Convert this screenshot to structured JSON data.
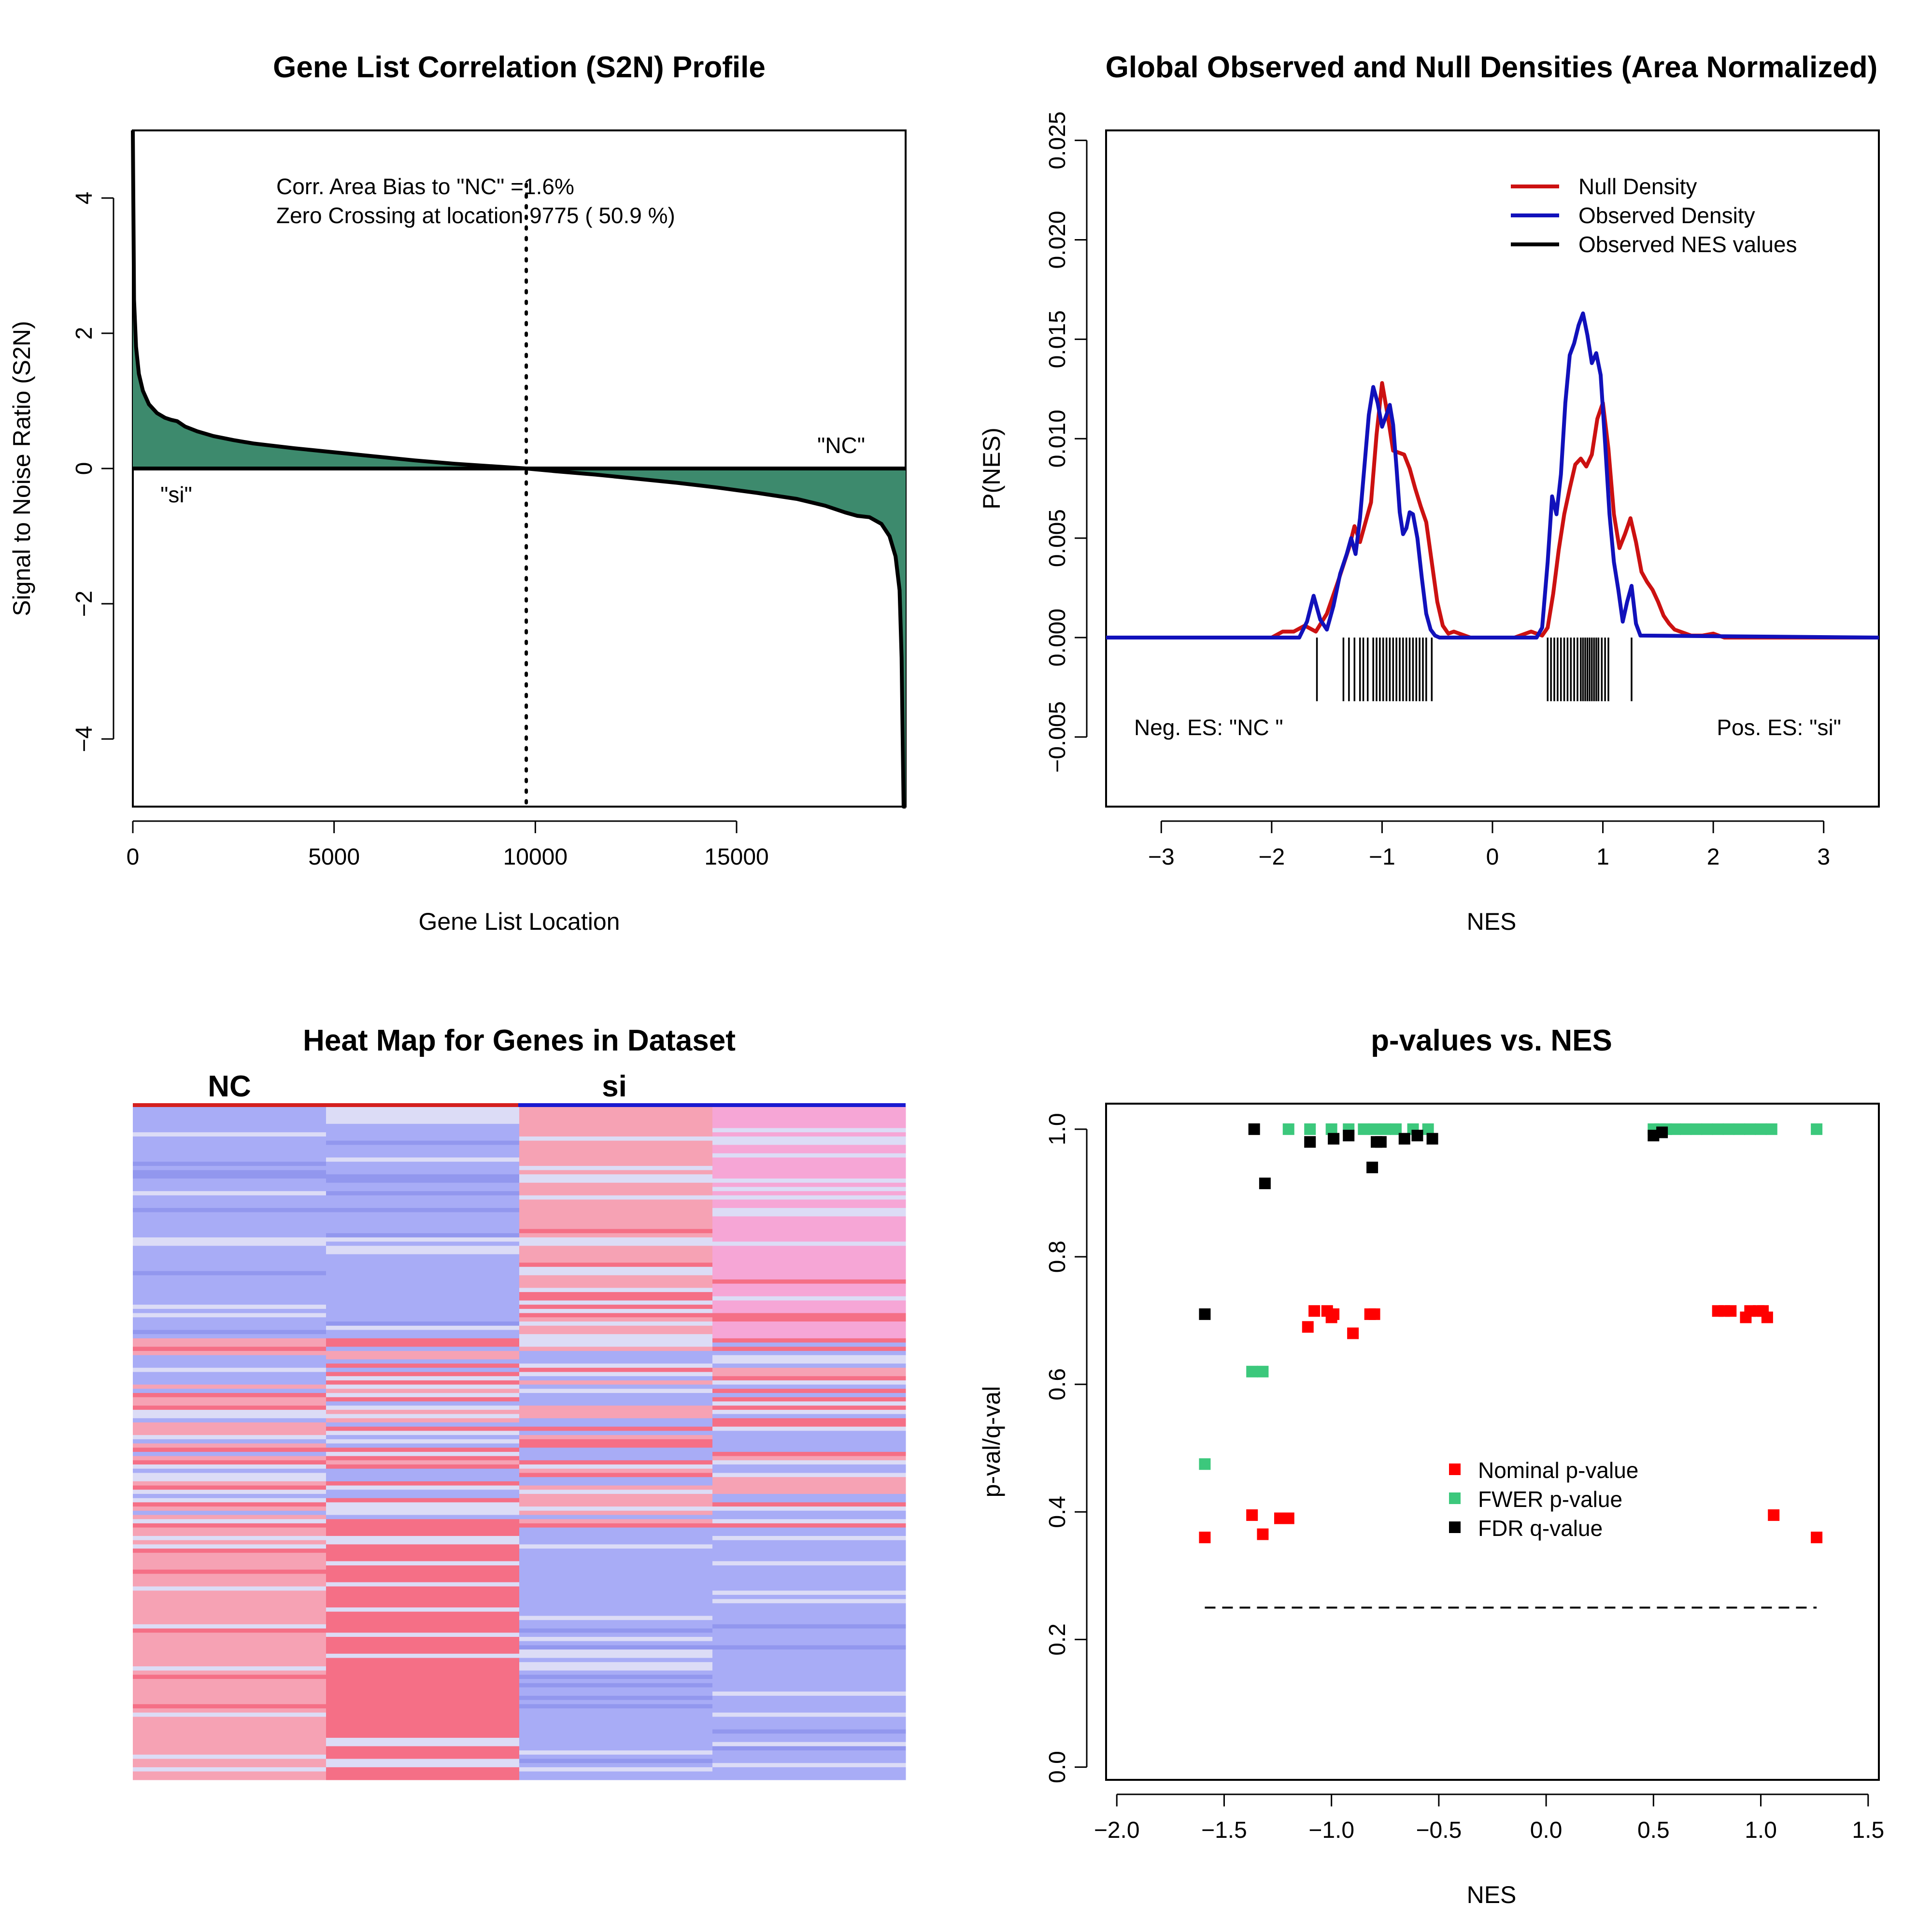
{
  "chart_data": [
    {
      "type": "area",
      "title": "Gene List Correlation (S2N) Profile",
      "xlabel": "Gene List Location",
      "ylabel": "Signal to Noise Ratio (S2N)",
      "xlim": [
        0,
        19200
      ],
      "ylim": [
        -5,
        5
      ],
      "x_ticks": [
        0,
        5000,
        10000,
        15000
      ],
      "x_tick_labels": [
        "0",
        "5000",
        "10000",
        "15000"
      ],
      "y_ticks": [
        -4,
        -2,
        0,
        2,
        4
      ],
      "y_tick_labels": [
        "−4",
        "−2",
        "0",
        "2",
        "4"
      ],
      "annotations": [
        "Corr. Area Bias to \"NC\" =1.6%",
        "Zero Crossing at location  9775  ( 50.9  %)"
      ],
      "label_top_right": "\"NC\"",
      "label_bottom_left": "\"si\"",
      "zero_crossing": 9775,
      "series": [
        {
          "x": [
            0,
            30,
            80,
            150,
            250,
            400,
            600,
            800,
            950,
            1100,
            1300,
            1600,
            2000,
            2500,
            3000,
            4000,
            5000,
            6000,
            7000,
            8000,
            9000,
            9775,
            10500,
            11500,
            12500,
            13500,
            14500,
            15500,
            16500,
            17200,
            17700,
            18000,
            18300,
            18600,
            18800,
            18950,
            19050,
            19100,
            19150,
            19200
          ],
          "values": [
            5.0,
            2.5,
            1.8,
            1.4,
            1.15,
            0.95,
            0.82,
            0.75,
            0.72,
            0.7,
            0.62,
            0.55,
            0.48,
            0.42,
            0.37,
            0.3,
            0.24,
            0.18,
            0.12,
            0.07,
            0.03,
            0.0,
            -0.04,
            -0.09,
            -0.15,
            -0.21,
            -0.28,
            -0.36,
            -0.45,
            -0.55,
            -0.65,
            -0.7,
            -0.72,
            -0.82,
            -1.0,
            -1.3,
            -1.8,
            -2.8,
            -5.0,
            -5.0
          ]
        }
      ],
      "colors": {
        "fill": "#3d8a6d",
        "line": "#000000"
      }
    },
    {
      "type": "line",
      "title": "Global Observed and Null Densities (Area Normalized)",
      "xlabel": "NES",
      "ylabel": "P(NES)",
      "xlim": [
        -3.5,
        3.5
      ],
      "ylim": [
        -0.0085,
        0.0255
      ],
      "x_ticks": [
        -3,
        -2,
        -1,
        0,
        1,
        2,
        3
      ],
      "x_tick_labels": [
        "−3",
        "−2",
        "−1",
        "0",
        "1",
        "2",
        "3"
      ],
      "y_ticks": [
        -0.005,
        0.0,
        0.005,
        0.01,
        0.015,
        0.02,
        0.025
      ],
      "y_tick_labels": [
        "−0.005",
        "0.000",
        "0.005",
        "0.010",
        "0.015",
        "0.020",
        "0.025"
      ],
      "legend": {
        "position": "top-right",
        "items": [
          "Null Density",
          "Observed Density",
          "Observed NES values"
        ]
      },
      "annotations": {
        "left": "Neg. ES: \"NC \"",
        "right": "Pos. ES: \"si\""
      },
      "series": [
        {
          "name": "Null Density",
          "color": "#cc1111",
          "x": [
            -3.5,
            -2.0,
            -1.9,
            -1.8,
            -1.7,
            -1.6,
            -1.5,
            -1.4,
            -1.3,
            -1.25,
            -1.2,
            -1.1,
            -1.05,
            -1.0,
            -0.95,
            -0.9,
            -0.85,
            -0.8,
            -0.75,
            -0.7,
            -0.65,
            -0.6,
            -0.55,
            -0.5,
            -0.45,
            -0.4,
            -0.35,
            -0.3,
            -0.2,
            0.2,
            0.35,
            0.45,
            0.5,
            0.55,
            0.6,
            0.65,
            0.7,
            0.75,
            0.8,
            0.85,
            0.9,
            0.95,
            1.0,
            1.05,
            1.1,
            1.15,
            1.2,
            1.25,
            1.3,
            1.35,
            1.4,
            1.45,
            1.5,
            1.55,
            1.6,
            1.65,
            1.7,
            1.8,
            1.9,
            2.0,
            2.1,
            3.5
          ],
          "values": [
            0.0,
            0.0,
            0.0003,
            0.0003,
            0.0006,
            0.0003,
            0.0012,
            0.0028,
            0.0045,
            0.0056,
            0.0048,
            0.0068,
            0.0102,
            0.0128,
            0.0112,
            0.0094,
            0.0093,
            0.0092,
            0.0085,
            0.0075,
            0.0066,
            0.0058,
            0.0038,
            0.0018,
            0.0006,
            0.0002,
            0.0003,
            0.0002,
            0.0,
            0.0,
            0.0003,
            0.0001,
            0.0005,
            0.0022,
            0.0044,
            0.0062,
            0.0075,
            0.0087,
            0.009,
            0.0086,
            0.0092,
            0.011,
            0.0118,
            0.0095,
            0.0062,
            0.0045,
            0.0052,
            0.006,
            0.0048,
            0.0033,
            0.0028,
            0.0024,
            0.0018,
            0.0011,
            0.0007,
            0.0004,
            0.0003,
            0.0001,
            0.0001,
            0.0002,
            0.0,
            0.0
          ]
        },
        {
          "name": "Observed Density",
          "color": "#1111bb",
          "x": [
            -3.5,
            -1.75,
            -1.68,
            -1.62,
            -1.56,
            -1.5,
            -1.44,
            -1.38,
            -1.32,
            -1.28,
            -1.24,
            -1.2,
            -1.16,
            -1.12,
            -1.08,
            -1.04,
            -1.0,
            -0.96,
            -0.93,
            -0.9,
            -0.87,
            -0.84,
            -0.81,
            -0.78,
            -0.75,
            -0.72,
            -0.68,
            -0.64,
            -0.6,
            -0.56,
            -0.52,
            -0.48,
            -0.44,
            0.4,
            0.45,
            0.5,
            0.54,
            0.58,
            0.62,
            0.66,
            0.7,
            0.74,
            0.78,
            0.82,
            0.86,
            0.9,
            0.94,
            0.98,
            1.02,
            1.06,
            1.1,
            1.14,
            1.18,
            1.22,
            1.26,
            1.3,
            1.34,
            3.5
          ],
          "values": [
            0.0,
            0.0,
            0.0008,
            0.0021,
            0.0009,
            0.0004,
            0.0016,
            0.0032,
            0.0042,
            0.005,
            0.0042,
            0.006,
            0.0086,
            0.0112,
            0.0126,
            0.0118,
            0.0106,
            0.0112,
            0.0117,
            0.0107,
            0.0086,
            0.0063,
            0.0052,
            0.0055,
            0.0063,
            0.0062,
            0.005,
            0.003,
            0.0012,
            0.0004,
            0.0001,
            0.0,
            0.0,
            0.0,
            0.0005,
            0.0038,
            0.0071,
            0.0062,
            0.0082,
            0.0118,
            0.0142,
            0.0148,
            0.0157,
            0.0163,
            0.0152,
            0.0138,
            0.0143,
            0.0132,
            0.0098,
            0.0062,
            0.0038,
            0.0024,
            0.0008,
            0.0018,
            0.0026,
            0.0007,
            0.0001,
            0.0
          ]
        }
      ],
      "rug": [
        -1.59,
        -1.35,
        -1.3,
        -1.25,
        -1.2,
        -1.17,
        -1.13,
        -1.08,
        -1.05,
        -1.02,
        -0.99,
        -0.96,
        -0.93,
        -0.9,
        -0.87,
        -0.84,
        -0.81,
        -0.78,
        -0.75,
        -0.72,
        -0.69,
        -0.66,
        -0.63,
        -0.6,
        -0.55,
        0.5,
        0.53,
        0.56,
        0.59,
        0.62,
        0.65,
        0.68,
        0.71,
        0.74,
        0.77,
        0.8,
        0.82,
        0.84,
        0.86,
        0.88,
        0.9,
        0.92,
        0.94,
        0.96,
        0.99,
        1.02,
        1.05,
        1.26
      ]
    },
    {
      "type": "heatmap",
      "title": "Heat Map for Genes in Dataset",
      "column_groups": [
        "NC",
        "si"
      ],
      "columns": 4,
      "colors": {
        "blue": "#a8acf6",
        "pink": "#f6a2b4",
        "red": "#f56f86",
        "light": "#dcdcf6",
        "magenta": "#f6a6d6",
        "group_left": "#d42020",
        "group_right": "#1a1ad0"
      }
    },
    {
      "type": "scatter",
      "title": "p-values vs. NES",
      "xlabel": "NES",
      "ylabel": "p-val/q-val",
      "xlim": [
        -2.05,
        1.55
      ],
      "ylim": [
        -0.02,
        1.04
      ],
      "x_ticks": [
        -2.0,
        -1.5,
        -1.0,
        -0.5,
        0.0,
        0.5,
        1.0,
        1.5
      ],
      "x_tick_labels": [
        "−2.0",
        "−1.5",
        "−1.0",
        "−0.5",
        "0.0",
        "0.5",
        "1.0",
        "1.5"
      ],
      "y_ticks": [
        0.0,
        0.2,
        0.4,
        0.6,
        0.8,
        1.0
      ],
      "y_tick_labels": [
        "0.0",
        "0.2",
        "0.4",
        "0.6",
        "0.8",
        "1.0"
      ],
      "legend": {
        "position": "center-right",
        "items": [
          "Nominal p-value",
          "FWER p-value",
          "FDR q-value"
        ]
      },
      "threshold_line": {
        "y": 0.25,
        "x_range": [
          -1.59,
          1.26
        ]
      },
      "series": [
        {
          "name": "Nominal p-value",
          "color": "#ff0000",
          "x": [
            -1.59,
            -1.37,
            -1.32,
            -1.24,
            -1.2,
            -1.11,
            -1.08,
            -1.02,
            -1.0,
            -0.99,
            -0.9,
            -0.82,
            -0.8,
            0.8,
            0.83,
            0.86,
            0.93,
            0.95,
            0.99,
            1.01,
            1.03,
            1.06,
            1.26
          ],
          "values": [
            0.36,
            0.395,
            0.365,
            0.39,
            0.39,
            0.69,
            0.715,
            0.715,
            0.705,
            0.71,
            0.68,
            0.71,
            0.71,
            0.715,
            0.715,
            0.715,
            0.705,
            0.715,
            0.715,
            0.715,
            0.705,
            0.395,
            0.36
          ]
        },
        {
          "name": "FWER p-value",
          "color": "#3cc87c",
          "x": [
            -1.59,
            -1.37,
            -1.32,
            -1.2,
            -1.1,
            -1.0,
            -0.92,
            -0.85,
            -0.8,
            -0.75,
            -0.7,
            -0.62,
            -0.55,
            0.5,
            0.53,
            0.56,
            0.6,
            0.65,
            0.7,
            0.75,
            0.8,
            0.85,
            0.9,
            0.95,
            1.0,
            1.05,
            1.26
          ],
          "values": [
            0.475,
            0.62,
            0.62,
            1.0,
            1.0,
            1.0,
            1.0,
            1.0,
            1.0,
            1.0,
            1.0,
            1.0,
            1.0,
            1.0,
            1.0,
            1.0,
            1.0,
            1.0,
            1.0,
            1.0,
            1.0,
            1.0,
            1.0,
            1.0,
            1.0,
            1.0,
            1.0
          ]
        },
        {
          "name": "FDR q-value",
          "color": "#000000",
          "x": [
            -1.59,
            -1.36,
            -1.31,
            -1.1,
            -0.99,
            -0.92,
            -0.81,
            -0.79,
            -0.77,
            -0.66,
            -0.6,
            -0.53,
            0.5,
            0.54
          ],
          "values": [
            0.71,
            1.0,
            0.915,
            0.98,
            0.985,
            0.99,
            0.94,
            0.98,
            0.98,
            0.985,
            0.99,
            0.985,
            0.99,
            0.995
          ]
        }
      ]
    }
  ]
}
